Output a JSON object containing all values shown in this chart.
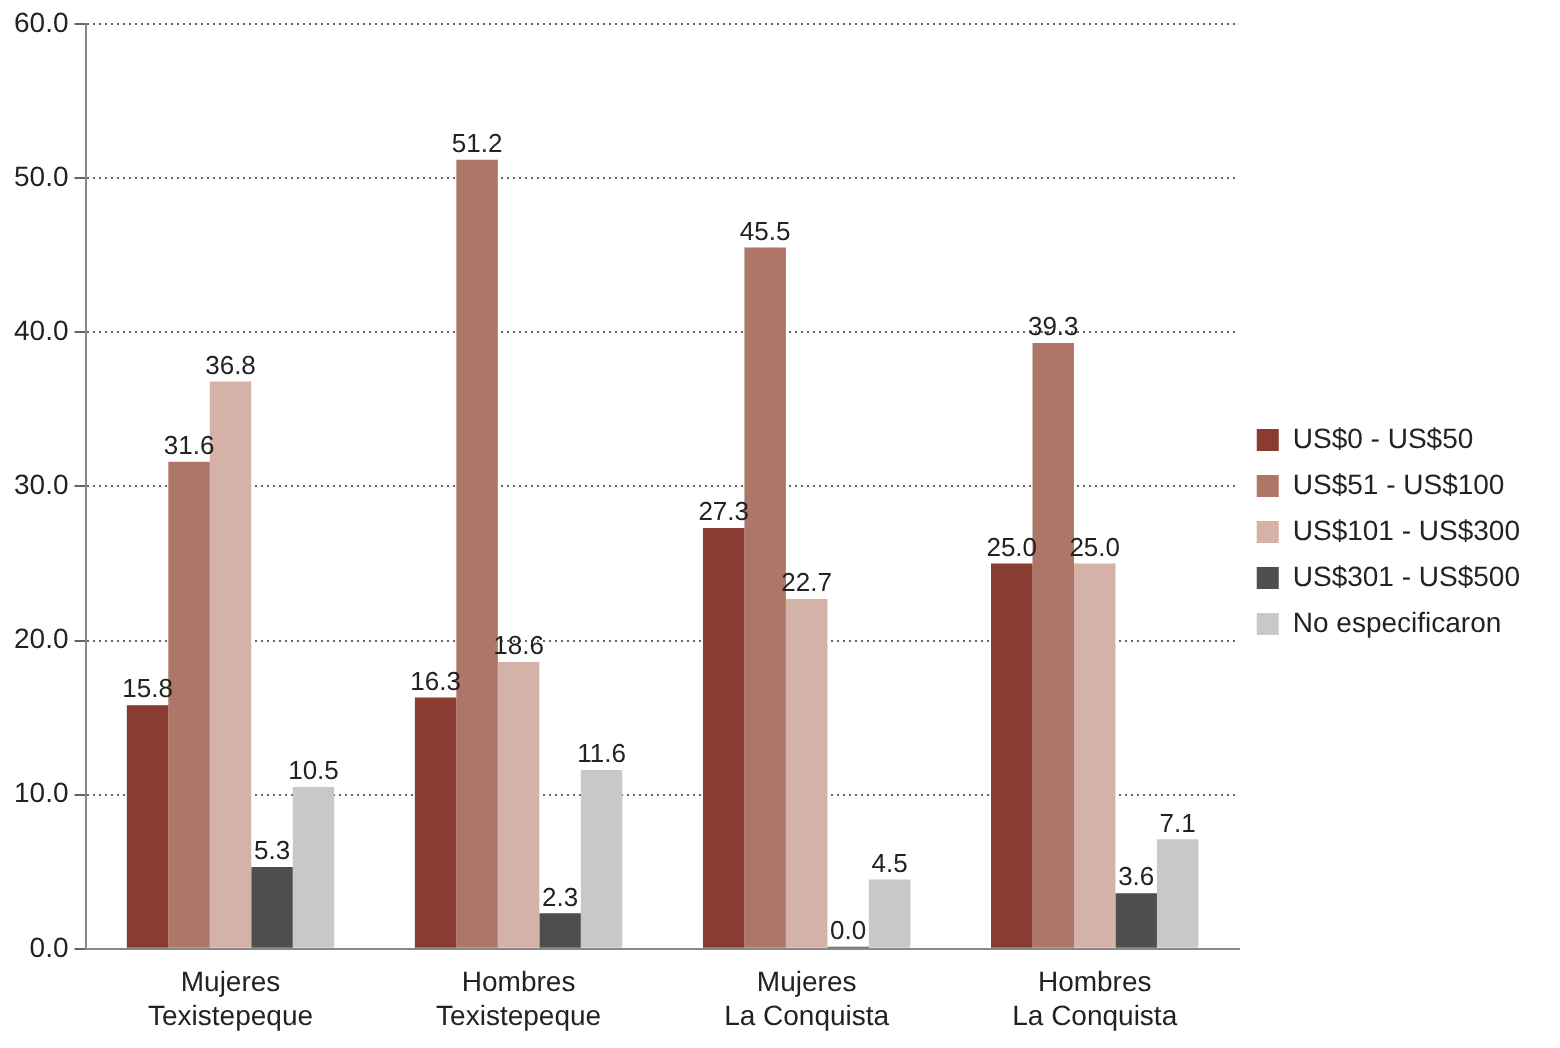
{
  "chart_data": {
    "type": "bar",
    "categories": [
      "Mujeres\nTexistepeque",
      "Hombres\nTexistepeque",
      "Mujeres\nLa Conquista",
      "Hombres\nLa Conquista"
    ],
    "series": [
      {
        "name": "US$0 - US$50",
        "color": "#8a3b32",
        "values": [
          15.8,
          16.3,
          27.3,
          25.0
        ],
        "value_labels": [
          "15.8",
          "16.3",
          "27.3",
          "25.0"
        ]
      },
      {
        "name": "US$51 - US$100",
        "color": "#ad7667",
        "values": [
          31.6,
          51.2,
          45.5,
          39.3
        ],
        "value_labels": [
          "31.6",
          "51.2",
          "45.5",
          "39.3"
        ]
      },
      {
        "name": "US$101 - US$300",
        "color": "#d5b2a8",
        "values": [
          36.8,
          18.6,
          22.7,
          25.0
        ],
        "value_labels": [
          "36.8",
          "18.6",
          "22.7",
          "25.0"
        ]
      },
      {
        "name": "US$301 - US$500",
        "color": "#4e4e4e",
        "values": [
          5.3,
          2.3,
          0.0,
          3.6
        ],
        "value_labels": [
          "5.3",
          "2.3",
          "0.0",
          "3.6"
        ]
      },
      {
        "name": "No especificaron",
        "color": "#c8c8c8",
        "values": [
          10.5,
          11.6,
          4.5,
          7.1
        ],
        "value_labels": [
          "10.5",
          "11.6",
          "4.5",
          "7.1"
        ]
      }
    ],
    "ylim": [
      0,
      60
    ],
    "yticks": [
      {
        "value": 0,
        "label": "0.0"
      },
      {
        "value": 10,
        "label": "10.0"
      },
      {
        "value": 20,
        "label": "20.0"
      },
      {
        "value": 30,
        "label": "30.0"
      },
      {
        "value": 40,
        "label": "40.0"
      },
      {
        "value": 50,
        "label": "50.0"
      },
      {
        "value": 60,
        "label": "60.0"
      }
    ],
    "grid": "y",
    "legend": "right"
  }
}
